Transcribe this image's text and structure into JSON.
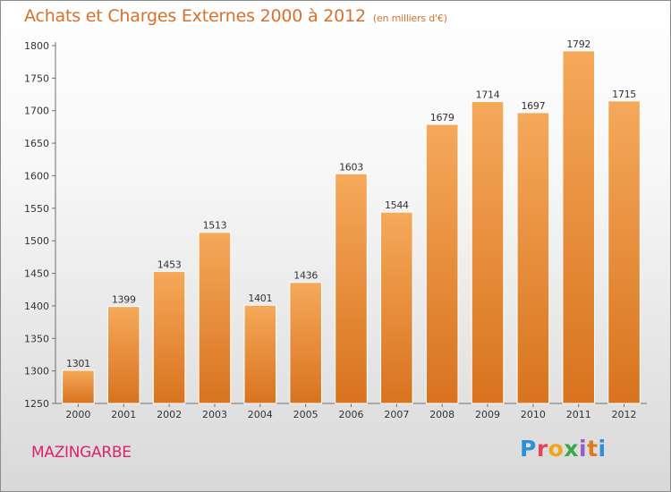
{
  "title": "Achats et Charges Externes 2000 à 2012",
  "unit_note": "(en milliers d'€)",
  "city": "MAZINGARBE",
  "logo_text": "Proxiti",
  "colors": {
    "bar_top": "#f5a95a",
    "bar_bottom": "#d8731f",
    "title": "#d9702a",
    "city": "#d9246f"
  },
  "chart_data": {
    "type": "bar",
    "title": "Achats et Charges Externes 2000 à 2012",
    "subtitle": "(en milliers d'€)",
    "categories": [
      "2000",
      "2001",
      "2002",
      "2003",
      "2004",
      "2005",
      "2006",
      "2007",
      "2008",
      "2009",
      "2010",
      "2011",
      "2012"
    ],
    "values": [
      1301,
      1399,
      1453,
      1513,
      1401,
      1436,
      1603,
      1544,
      1679,
      1714,
      1697,
      1792,
      1715
    ],
    "ylim": [
      1250,
      1800
    ],
    "yticks": [
      1250,
      1300,
      1350,
      1400,
      1450,
      1500,
      1550,
      1600,
      1650,
      1700,
      1750,
      1800
    ],
    "grid": false,
    "legend": "none"
  }
}
